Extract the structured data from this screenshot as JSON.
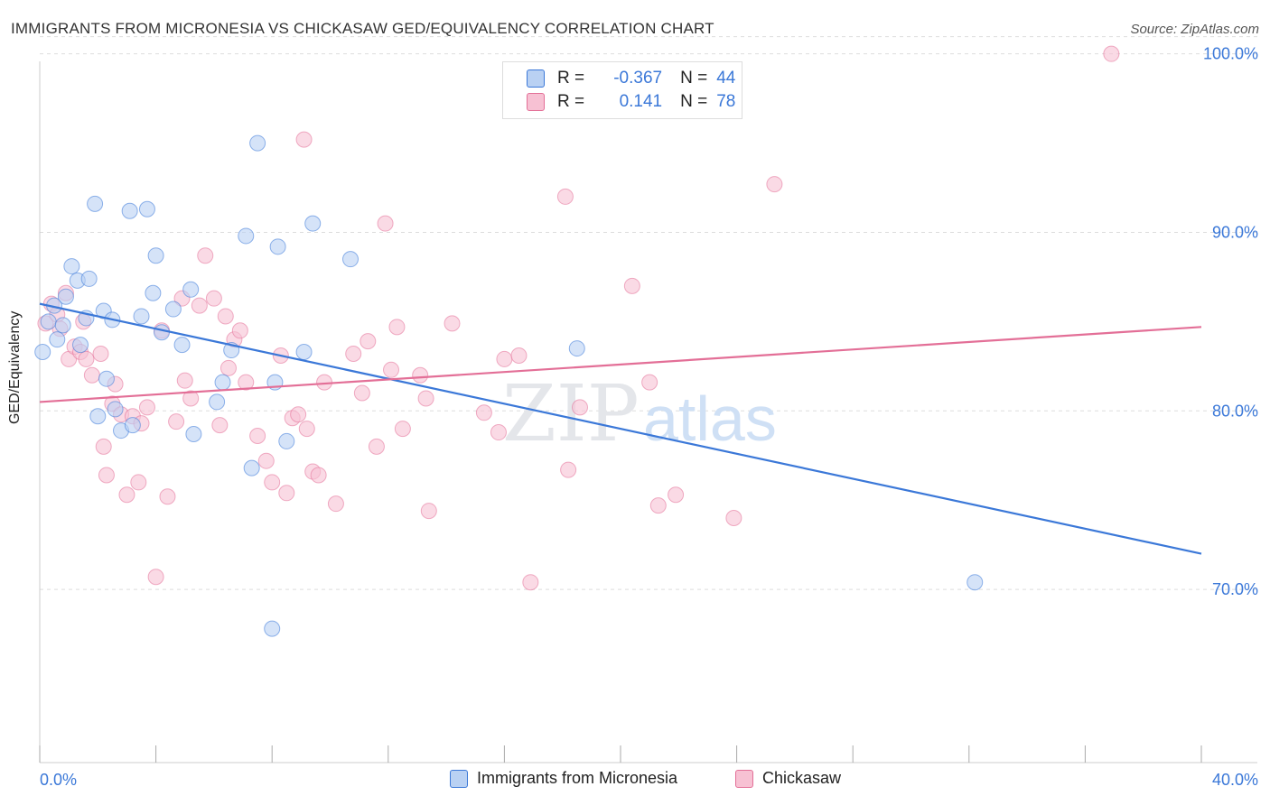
{
  "title": "IMMIGRANTS FROM MICRONESIA VS CHICKASAW GED/EQUIVALENCY CORRELATION CHART",
  "source": "Source: ZipAtlas.com",
  "watermark": {
    "zip": "ZIP",
    "atlas": "atlas"
  },
  "colors": {
    "blue": "#3b78d8",
    "blue_fill": "#b9d1f3",
    "pink": "#e36f97",
    "pink_fill": "#f7c1d3",
    "grid": "#dddddd",
    "axis_text": "#3b78d8"
  },
  "legend": {
    "r_label": "R =",
    "n_label": "N =",
    "series": [
      {
        "r": "-0.367",
        "n": "44"
      },
      {
        "r": "0.141",
        "n": "78"
      }
    ]
  },
  "chart_data": {
    "type": "scatter",
    "title": "IMMIGRANTS FROM MICRONESIA VS CHICKASAW GED/EQUIVALENCY CORRELATION CHART",
    "xlabel": "",
    "ylabel": "GED/Equivalency",
    "xlim": [
      0,
      40
    ],
    "ylim": [
      60.3,
      101.5
    ],
    "x_tick_labels": [
      "0.0%",
      "40.0%"
    ],
    "y_ticks": [
      70,
      80,
      90,
      100
    ],
    "y_tick_labels": [
      "70.0%",
      "80.0%",
      "90.0%",
      "100.0%"
    ],
    "grid": true,
    "legend_position": "top-center",
    "series": [
      {
        "name": "Immigrants from Micronesia",
        "color": "#3b78d8",
        "trend": [
          [
            0,
            86.0
          ],
          [
            40,
            72.0
          ]
        ],
        "points": [
          [
            0.1,
            83.3
          ],
          [
            0.3,
            85.0
          ],
          [
            0.5,
            85.9
          ],
          [
            0.6,
            84.0
          ],
          [
            0.8,
            84.8
          ],
          [
            0.9,
            86.4
          ],
          [
            1.1,
            88.1
          ],
          [
            1.3,
            87.3
          ],
          [
            1.4,
            83.7
          ],
          [
            1.6,
            85.2
          ],
          [
            1.7,
            87.4
          ],
          [
            1.9,
            91.6
          ],
          [
            2.0,
            79.7
          ],
          [
            2.2,
            85.6
          ],
          [
            2.3,
            81.8
          ],
          [
            2.5,
            85.1
          ],
          [
            2.6,
            80.1
          ],
          [
            2.8,
            78.9
          ],
          [
            3.1,
            91.2
          ],
          [
            3.2,
            79.2
          ],
          [
            3.5,
            85.3
          ],
          [
            3.7,
            91.3
          ],
          [
            3.9,
            86.6
          ],
          [
            4.0,
            88.7
          ],
          [
            4.2,
            84.4
          ],
          [
            4.6,
            85.7
          ],
          [
            4.9,
            83.7
          ],
          [
            5.3,
            78.7
          ],
          [
            5.2,
            86.8
          ],
          [
            6.1,
            80.5
          ],
          [
            6.3,
            81.6
          ],
          [
            6.6,
            83.4
          ],
          [
            7.1,
            89.8
          ],
          [
            7.3,
            76.8
          ],
          [
            7.5,
            95.0
          ],
          [
            8.0,
            67.8
          ],
          [
            8.1,
            81.6
          ],
          [
            8.2,
            89.2
          ],
          [
            8.5,
            78.3
          ],
          [
            9.1,
            83.3
          ],
          [
            9.4,
            90.5
          ],
          [
            10.7,
            88.5
          ],
          [
            18.5,
            83.5
          ],
          [
            32.2,
            70.4
          ]
        ]
      },
      {
        "name": "Chickasaw",
        "color": "#e36f97",
        "trend": [
          [
            0,
            80.5
          ],
          [
            40,
            84.7
          ]
        ],
        "points": [
          [
            0.2,
            84.9
          ],
          [
            0.4,
            86.0
          ],
          [
            0.6,
            85.4
          ],
          [
            0.7,
            84.6
          ],
          [
            0.9,
            86.6
          ],
          [
            1.0,
            82.9
          ],
          [
            1.2,
            83.6
          ],
          [
            1.4,
            83.3
          ],
          [
            1.6,
            82.9
          ],
          [
            1.8,
            82.0
          ],
          [
            2.1,
            83.2
          ],
          [
            2.2,
            78.0
          ],
          [
            2.3,
            76.4
          ],
          [
            2.5,
            80.4
          ],
          [
            2.6,
            81.5
          ],
          [
            2.8,
            79.8
          ],
          [
            3.0,
            75.3
          ],
          [
            3.2,
            79.7
          ],
          [
            3.4,
            76.0
          ],
          [
            3.5,
            79.3
          ],
          [
            3.7,
            80.2
          ],
          [
            4.0,
            70.7
          ],
          [
            4.2,
            84.5
          ],
          [
            4.4,
            75.2
          ],
          [
            4.7,
            79.4
          ],
          [
            5.0,
            81.7
          ],
          [
            5.2,
            80.7
          ],
          [
            5.5,
            85.9
          ],
          [
            5.7,
            88.7
          ],
          [
            6.0,
            86.3
          ],
          [
            6.2,
            79.2
          ],
          [
            6.4,
            85.3
          ],
          [
            6.5,
            82.4
          ],
          [
            6.7,
            84.0
          ],
          [
            6.9,
            84.5
          ],
          [
            7.1,
            81.6
          ],
          [
            7.5,
            78.6
          ],
          [
            7.8,
            77.2
          ],
          [
            8.0,
            76.0
          ],
          [
            8.3,
            83.1
          ],
          [
            8.5,
            75.4
          ],
          [
            8.7,
            79.6
          ],
          [
            8.9,
            79.8
          ],
          [
            9.1,
            95.2
          ],
          [
            9.2,
            79.0
          ],
          [
            9.4,
            76.6
          ],
          [
            9.6,
            76.4
          ],
          [
            9.8,
            81.6
          ],
          [
            10.2,
            74.8
          ],
          [
            10.8,
            83.2
          ],
          [
            11.1,
            81.0
          ],
          [
            11.3,
            83.9
          ],
          [
            11.6,
            78.0
          ],
          [
            11.9,
            90.5
          ],
          [
            12.1,
            82.3
          ],
          [
            12.3,
            84.7
          ],
          [
            12.5,
            79.0
          ],
          [
            13.1,
            82.0
          ],
          [
            13.3,
            80.7
          ],
          [
            13.4,
            74.4
          ],
          [
            14.2,
            84.9
          ],
          [
            15.3,
            79.9
          ],
          [
            15.8,
            78.8
          ],
          [
            16.0,
            82.9
          ],
          [
            16.5,
            83.1
          ],
          [
            16.9,
            70.4
          ],
          [
            18.1,
            92.0
          ],
          [
            18.2,
            76.7
          ],
          [
            18.6,
            80.2
          ],
          [
            20.4,
            87.0
          ],
          [
            21.0,
            81.6
          ],
          [
            21.3,
            74.7
          ],
          [
            21.9,
            75.3
          ],
          [
            23.9,
            74.0
          ],
          [
            25.3,
            92.7
          ],
          [
            36.9,
            100.0
          ],
          [
            4.9,
            86.3
          ],
          [
            1.5,
            85.0
          ]
        ]
      }
    ]
  }
}
